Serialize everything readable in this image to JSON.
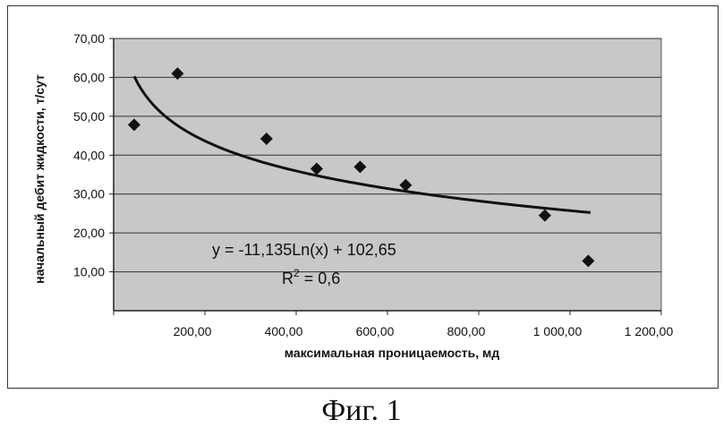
{
  "chart_data": {
    "type": "scatter",
    "xlabel": "максимальная проницаемость, мд",
    "ylabel": "начальный дебит жидкости, т/сут",
    "xlim": [
      0,
      1200
    ],
    "ylim": [
      0,
      70
    ],
    "x_ticks": [
      200,
      400,
      600,
      800,
      1000,
      1200
    ],
    "x_tick_labels": [
      "200,00",
      "400,00",
      "600,00",
      "800,00",
      "1 000,00",
      "1 200,00"
    ],
    "y_ticks": [
      10,
      20,
      30,
      40,
      50,
      60,
      70
    ],
    "y_tick_labels": [
      "10,00",
      "20,00",
      "30,00",
      "40,00",
      "50,00",
      "60,00",
      "70,00"
    ],
    "grid": "horizontal",
    "plot_background": "#c8c8c8",
    "points": [
      {
        "x": 45,
        "y": 47.8
      },
      {
        "x": 140,
        "y": 61.0
      },
      {
        "x": 335,
        "y": 44.2
      },
      {
        "x": 445,
        "y": 36.5
      },
      {
        "x": 540,
        "y": 37.0
      },
      {
        "x": 640,
        "y": 32.3
      },
      {
        "x": 945,
        "y": 24.5
      },
      {
        "x": 1040,
        "y": 12.8
      }
    ],
    "trendline": {
      "type": "logarithmic",
      "a": -11.135,
      "b": 102.65,
      "x_from": 45,
      "x_to": 1045,
      "equation_label": "y = -11,135Ln(x) + 102,65",
      "r2_prefix": "R",
      "r2_sup": "2",
      "r2_suffix": " = 0,6"
    }
  },
  "caption": "Фиг. 1"
}
